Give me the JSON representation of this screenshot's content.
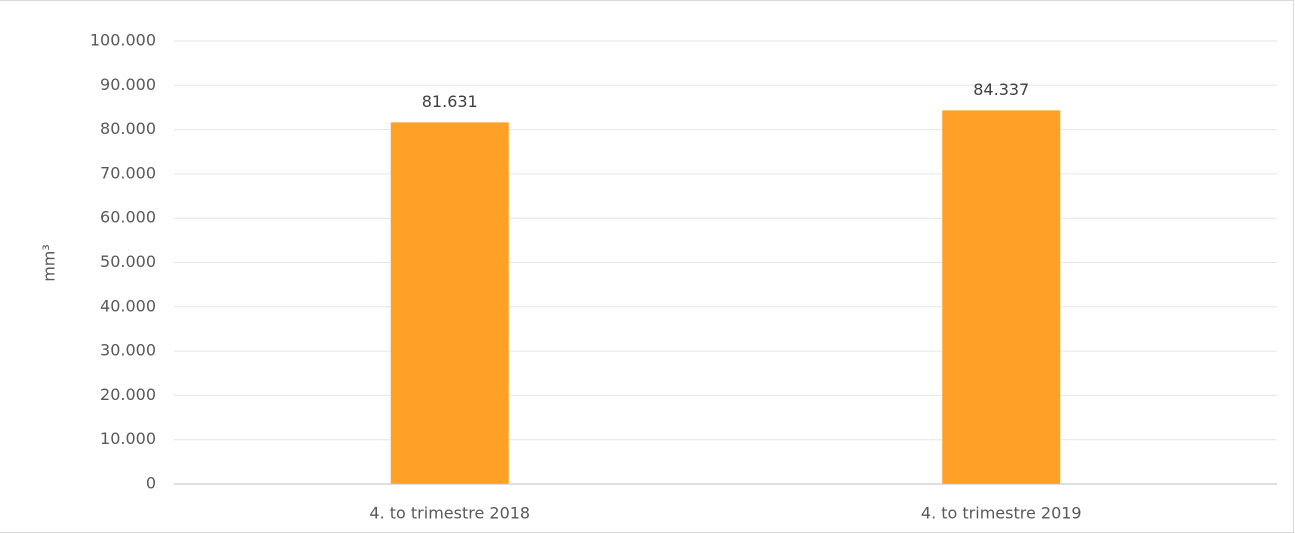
{
  "chart_data": {
    "type": "bar",
    "categories": [
      "4. to trimestre 2018",
      "4. to trimestre 2019"
    ],
    "values": [
      81631,
      84337
    ],
    "data_labels": [
      "81.631",
      "84.337"
    ],
    "ylabel": "mm³",
    "xlabel": "",
    "ylim": [
      0,
      100000
    ],
    "y_ticks": [
      0,
      10000,
      20000,
      30000,
      40000,
      50000,
      60000,
      70000,
      80000,
      90000,
      100000
    ],
    "y_tick_labels": [
      "0",
      "10.000",
      "20.000",
      "30.000",
      "40.000",
      "50.000",
      "60.000",
      "70.000",
      "80.000",
      "90.000",
      "100.000"
    ],
    "grid": true,
    "legend": "none",
    "colors": {
      "bar": "#FFA126",
      "grid": "#e6e6e6",
      "axis": "#bfbfbf",
      "text": "#595959"
    }
  }
}
